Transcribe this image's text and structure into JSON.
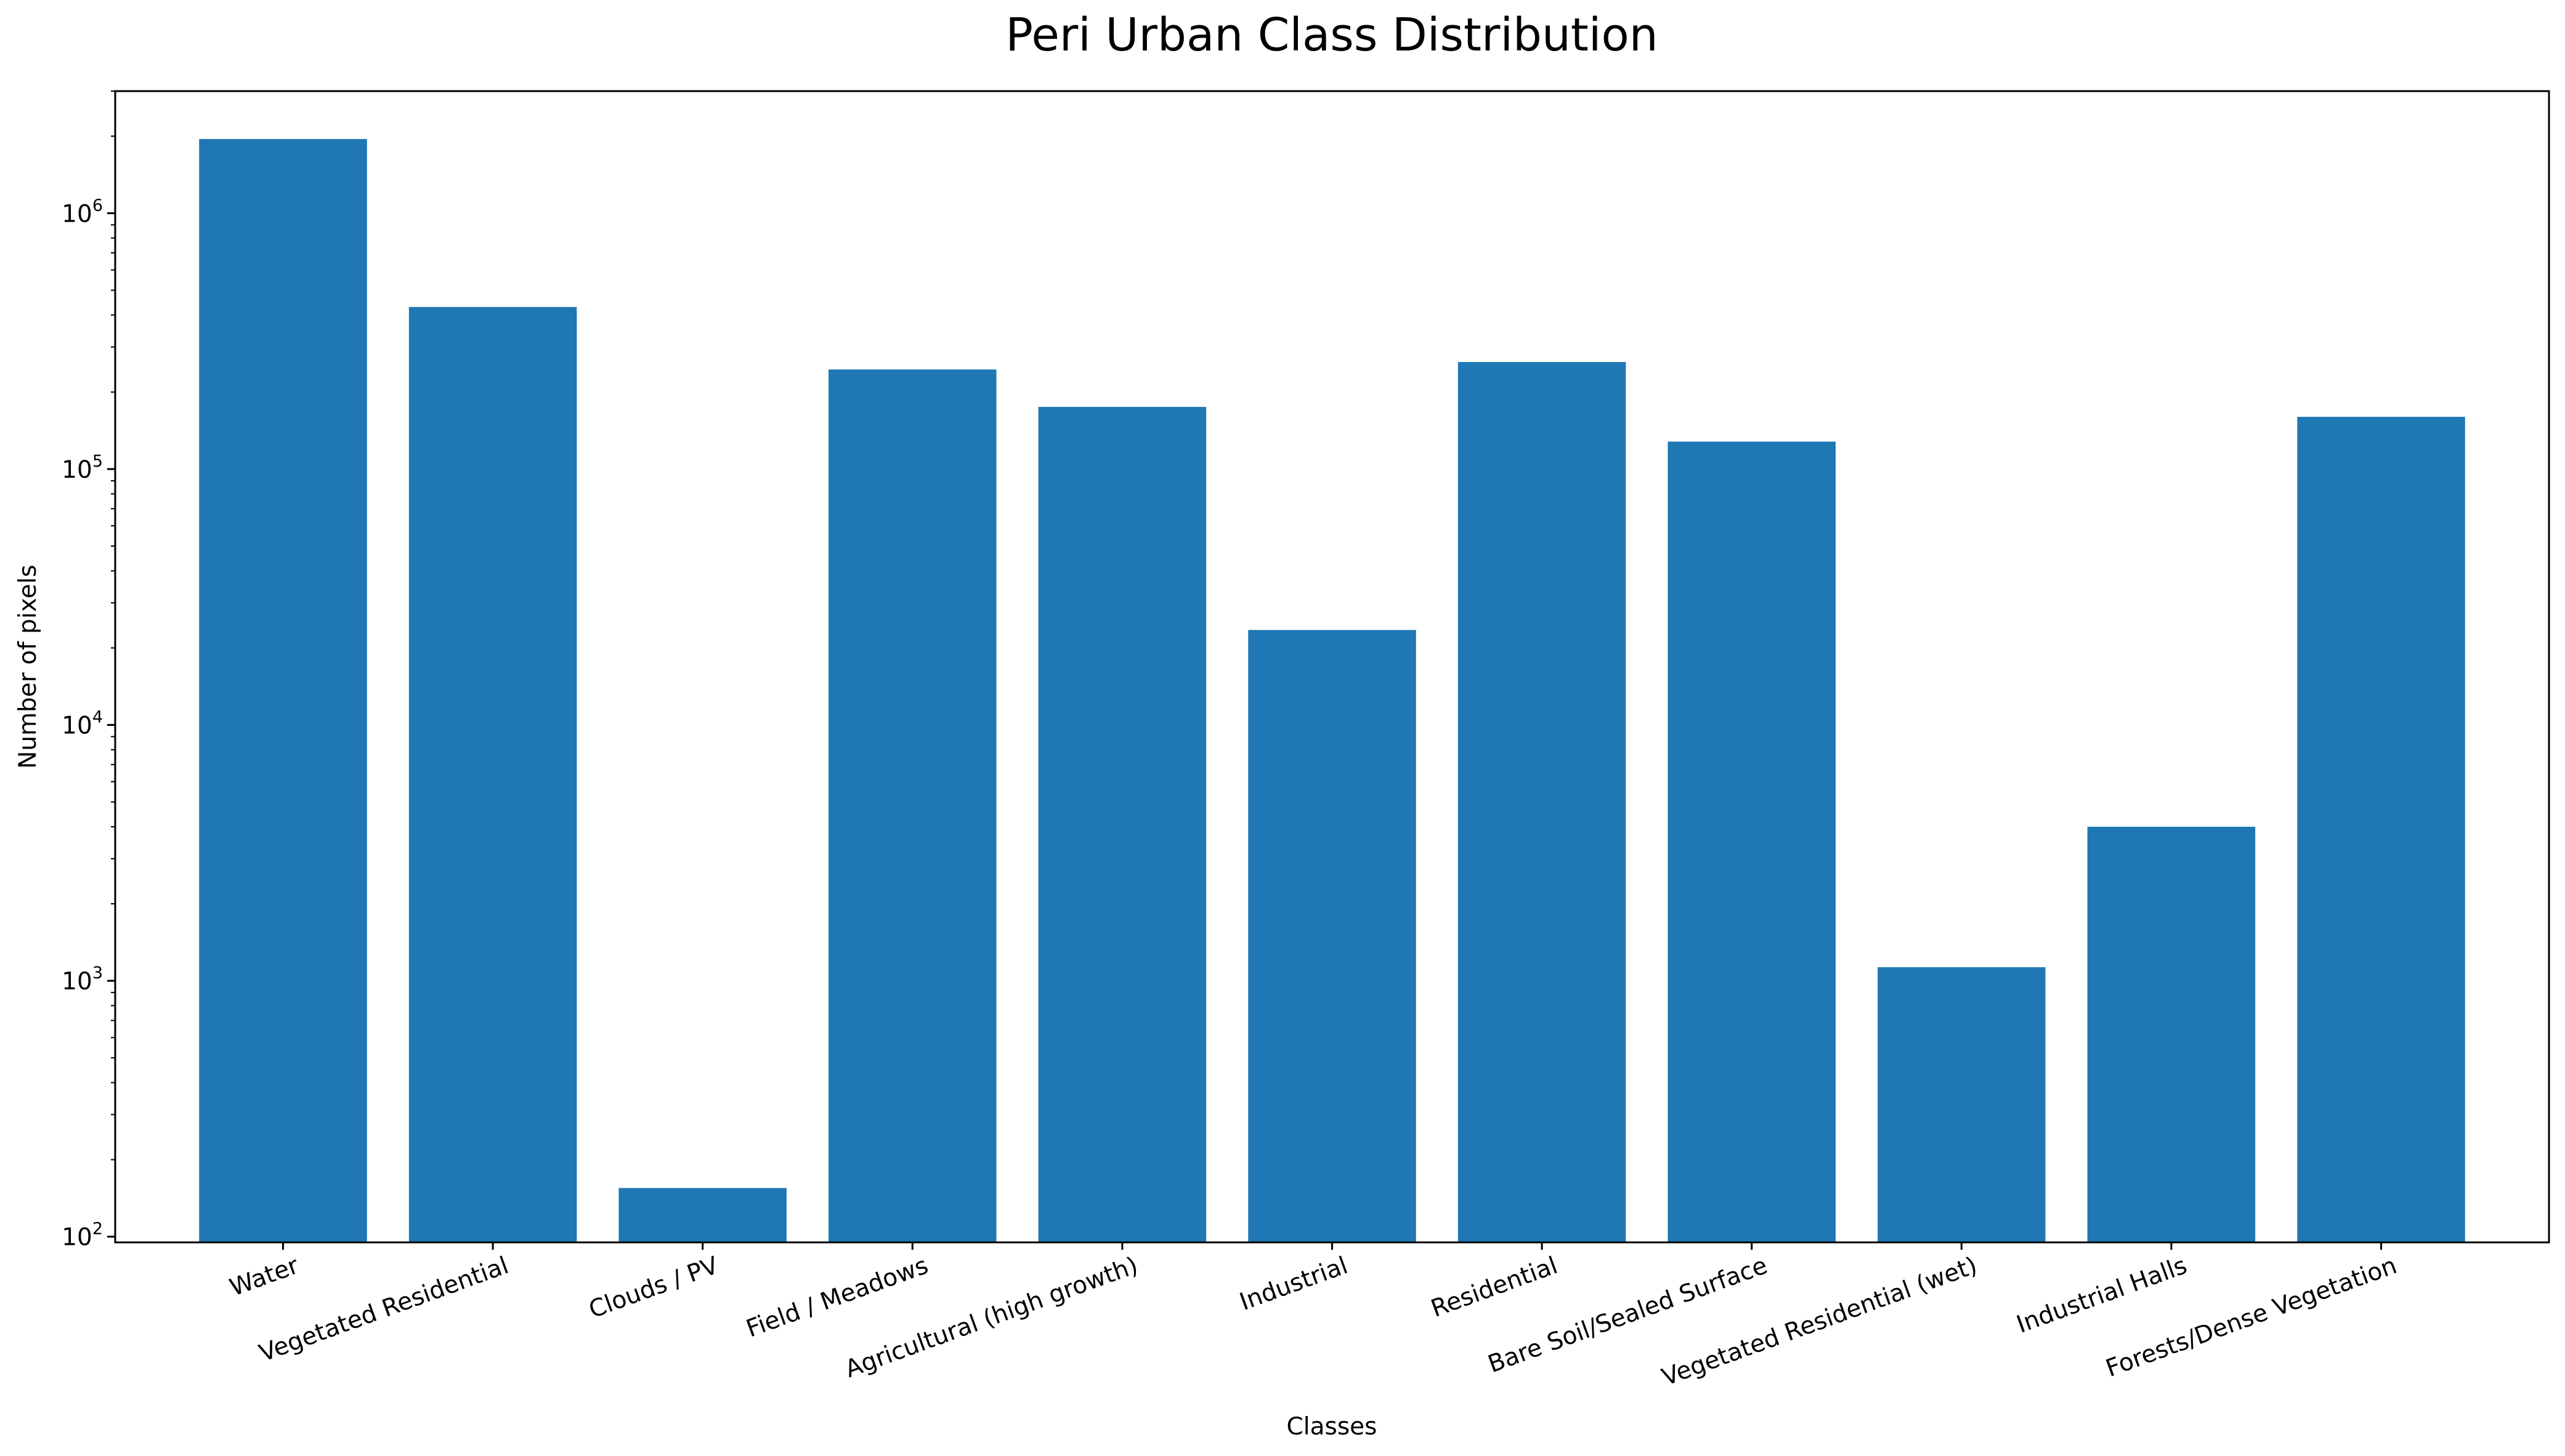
{
  "chart_data": {
    "type": "bar",
    "title": "Peri Urban Class Distribution",
    "xlabel": "Classes",
    "ylabel": "Number of pixels",
    "yscale": "log",
    "ylim": [
      95,
      3000000
    ],
    "yticks": [
      {
        "value": 100,
        "base": "10",
        "exp": "2"
      },
      {
        "value": 1000,
        "base": "10",
        "exp": "3"
      },
      {
        "value": 10000,
        "base": "10",
        "exp": "4"
      },
      {
        "value": 100000,
        "base": "10",
        "exp": "5"
      },
      {
        "value": 1000000,
        "base": "10",
        "exp": "6"
      }
    ],
    "categories": [
      "Water",
      "Vegetated Residential",
      "Clouds / PV",
      "Field / Meadows",
      "Agricultural (high growth)",
      "Industrial",
      "Residential",
      "Bare Soil/Sealed Surface",
      "Vegetated Residential (wet)",
      "Industrial Halls",
      "Forests/Dense Vegetation"
    ],
    "values": [
      1950000,
      430000,
      155,
      245000,
      175000,
      23500,
      262000,
      128000,
      1130,
      4000,
      160000
    ],
    "bar_color": "#1f77b4",
    "tick_rotation": 20,
    "grid": false,
    "legend": "none"
  }
}
